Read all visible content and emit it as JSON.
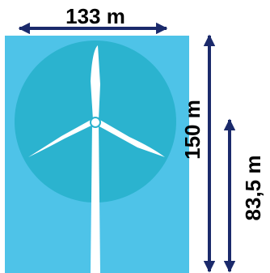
{
  "dimensions": {
    "rotor_diameter": "133 m",
    "total_height": "150 m",
    "hub_height": "83,5 m"
  },
  "colors": {
    "background_panel": "#4ec3e8",
    "rotor_disc": "#2bb3cf",
    "turbine": "#ffffff",
    "dimension_lines": "#1b2a6b",
    "text": "#000000"
  }
}
